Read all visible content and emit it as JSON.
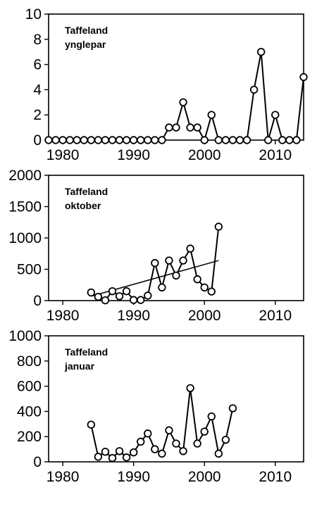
{
  "chart_data": [
    {
      "type": "line",
      "annotation": [
        "Taffeland",
        "ynglepar"
      ],
      "xlim": [
        1978,
        2014
      ],
      "ylim": [
        0,
        10
      ],
      "xticks": [
        1980,
        1990,
        2000,
        2010
      ],
      "yticks": [
        0,
        2,
        4,
        6,
        8,
        10
      ],
      "grid": false,
      "series": [
        {
          "x": [
            1978,
            1979,
            1980,
            1981,
            1982,
            1983,
            1984,
            1985,
            1986,
            1987,
            1988,
            1989,
            1990,
            1991,
            1992,
            1993,
            1994,
            1995,
            1996,
            1997,
            1998,
            1999,
            2000,
            2001,
            2002,
            2003,
            2004,
            2005,
            2006,
            2007,
            2008,
            2009,
            2010,
            2011,
            2012,
            2013,
            2014
          ],
          "y": [
            0,
            0,
            0,
            0,
            0,
            0,
            0,
            0,
            0,
            0,
            0,
            0,
            0,
            0,
            0,
            0,
            0,
            1,
            1,
            3,
            1,
            1,
            0,
            2,
            0,
            0,
            0,
            0,
            0,
            4,
            7,
            0,
            2,
            0,
            0,
            0,
            5
          ]
        }
      ]
    },
    {
      "type": "line",
      "annotation": [
        "Taffeland",
        "oktober"
      ],
      "xlim": [
        1978,
        2014
      ],
      "ylim": [
        0,
        2000
      ],
      "xticks": [
        1980,
        1990,
        2000,
        2010
      ],
      "yticks": [
        0,
        500,
        1000,
        1500,
        2000
      ],
      "grid": false,
      "series": [
        {
          "x": [
            1984,
            1985,
            1986,
            1987,
            1988,
            1989,
            1990,
            1991,
            1992,
            1993,
            1994,
            1995,
            1996,
            1997,
            1998,
            1999,
            2000,
            2001,
            2002
          ],
          "y": [
            130,
            60,
            5,
            150,
            70,
            150,
            10,
            10,
            80,
            600,
            210,
            640,
            400,
            640,
            830,
            340,
            210,
            145,
            1180
          ]
        }
      ],
      "trendline": {
        "x": [
          1984,
          2002
        ],
        "y": [
          70,
          640
        ]
      }
    },
    {
      "type": "line",
      "annotation": [
        "Taffeland",
        "januar"
      ],
      "xlim": [
        1978,
        2014
      ],
      "ylim": [
        0,
        1000
      ],
      "xticks": [
        1980,
        1990,
        2000,
        2010
      ],
      "yticks": [
        0,
        200,
        400,
        600,
        800,
        1000
      ],
      "grid": false,
      "series": [
        {
          "x": [
            1984,
            1985,
            1986,
            1987,
            1988,
            1989,
            1990,
            1991,
            1992,
            1993,
            1994,
            1995,
            1996,
            1997,
            1998,
            1999,
            2000,
            2001,
            2002,
            2003,
            2004
          ],
          "y": [
            295,
            40,
            80,
            30,
            85,
            35,
            75,
            160,
            225,
            100,
            65,
            250,
            145,
            85,
            585,
            145,
            240,
            360,
            65,
            175,
            425
          ]
        }
      ]
    }
  ]
}
